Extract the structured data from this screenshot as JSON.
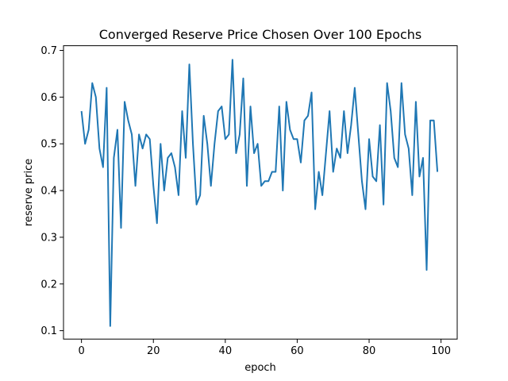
{
  "chart_data": {
    "type": "line",
    "title": "Converged Reserve Price Chosen Over 100 Epochs",
    "xlabel": "epoch",
    "ylabel": "reserve price",
    "xlim": [
      -5,
      104.5
    ],
    "ylim": [
      0.082,
      0.71
    ],
    "xticks": [
      "0",
      "20",
      "40",
      "60",
      "80",
      "100"
    ],
    "yticks": [
      "0.1",
      "0.2",
      "0.3",
      "0.4",
      "0.5",
      "0.6",
      "0.7"
    ],
    "grid": false,
    "line_color": "#1f77b4",
    "series": [
      {
        "x": [
          0,
          1,
          2,
          3,
          4,
          5,
          6,
          7,
          8,
          9,
          10,
          11,
          12,
          13,
          14,
          15,
          16,
          17,
          18,
          19,
          20,
          21,
          22,
          23,
          24,
          25,
          26,
          27,
          28,
          29,
          30,
          31,
          32,
          33,
          34,
          35,
          36,
          37,
          38,
          39,
          40,
          41,
          42,
          43,
          44,
          45,
          46,
          47,
          48,
          49,
          50,
          51,
          52,
          53,
          54,
          55,
          56,
          57,
          58,
          59,
          60,
          61,
          62,
          63,
          64,
          65,
          66,
          67,
          68,
          69,
          70,
          71,
          72,
          73,
          74,
          75,
          76,
          77,
          78,
          79,
          80,
          81,
          82,
          83,
          84,
          85,
          86,
          87,
          88,
          89,
          90,
          91,
          92,
          93,
          94,
          95,
          96,
          97,
          98,
          99
        ],
        "values": [
          0.57,
          0.5,
          0.53,
          0.63,
          0.6,
          0.49,
          0.45,
          0.62,
          0.11,
          0.47,
          0.53,
          0.32,
          0.59,
          0.55,
          0.52,
          0.41,
          0.52,
          0.49,
          0.52,
          0.51,
          0.41,
          0.33,
          0.5,
          0.4,
          0.47,
          0.48,
          0.45,
          0.39,
          0.57,
          0.47,
          0.67,
          0.5,
          0.37,
          0.39,
          0.56,
          0.5,
          0.41,
          0.5,
          0.57,
          0.58,
          0.51,
          0.52,
          0.68,
          0.48,
          0.52,
          0.64,
          0.41,
          0.58,
          0.48,
          0.5,
          0.41,
          0.42,
          0.42,
          0.44,
          0.44,
          0.58,
          0.4,
          0.59,
          0.53,
          0.51,
          0.51,
          0.46,
          0.55,
          0.56,
          0.61,
          0.36,
          0.44,
          0.39,
          0.48,
          0.57,
          0.44,
          0.49,
          0.47,
          0.57,
          0.48,
          0.54,
          0.62,
          0.52,
          0.42,
          0.36,
          0.51,
          0.43,
          0.42,
          0.54,
          0.37,
          0.63,
          0.57,
          0.47,
          0.45,
          0.63,
          0.52,
          0.49,
          0.39,
          0.59,
          0.43,
          0.47,
          0.23,
          0.55,
          0.55,
          0.44
        ]
      }
    ]
  }
}
